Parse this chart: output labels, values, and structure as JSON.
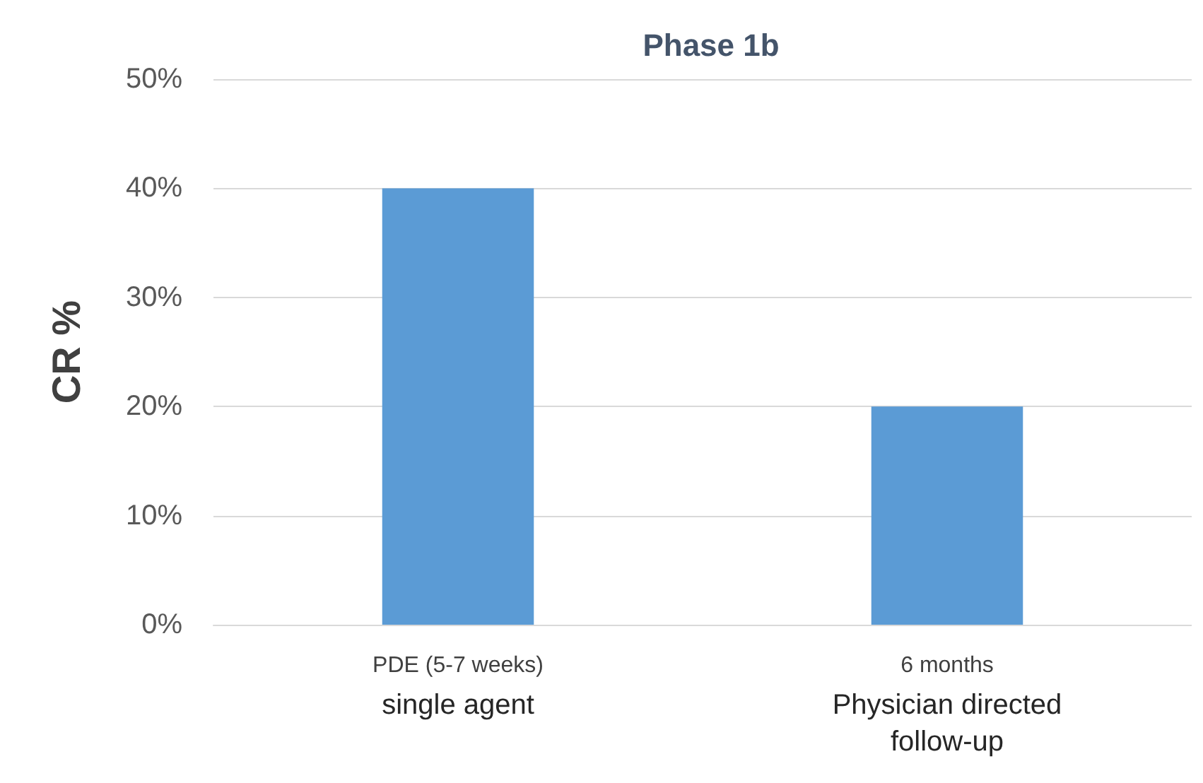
{
  "chart_data": {
    "type": "bar",
    "title": "Phase 1b",
    "ylabel": "CR %",
    "categories": [
      "PDE (5-7 weeks)\nsingle agent",
      "6 months\nPhysician directed\nfollow-up"
    ],
    "values": [
      40,
      20
    ],
    "color": "#5b9bd5",
    "ylim": [
      0,
      50
    ],
    "yticks": [
      {
        "value": 0,
        "label": "0%"
      },
      {
        "value": 10,
        "label": "10%"
      },
      {
        "value": 20,
        "label": "20%"
      },
      {
        "value": 30,
        "label": "30%"
      },
      {
        "value": 40,
        "label": "40%"
      },
      {
        "value": 50,
        "label": "50%"
      }
    ],
    "grid": true
  }
}
